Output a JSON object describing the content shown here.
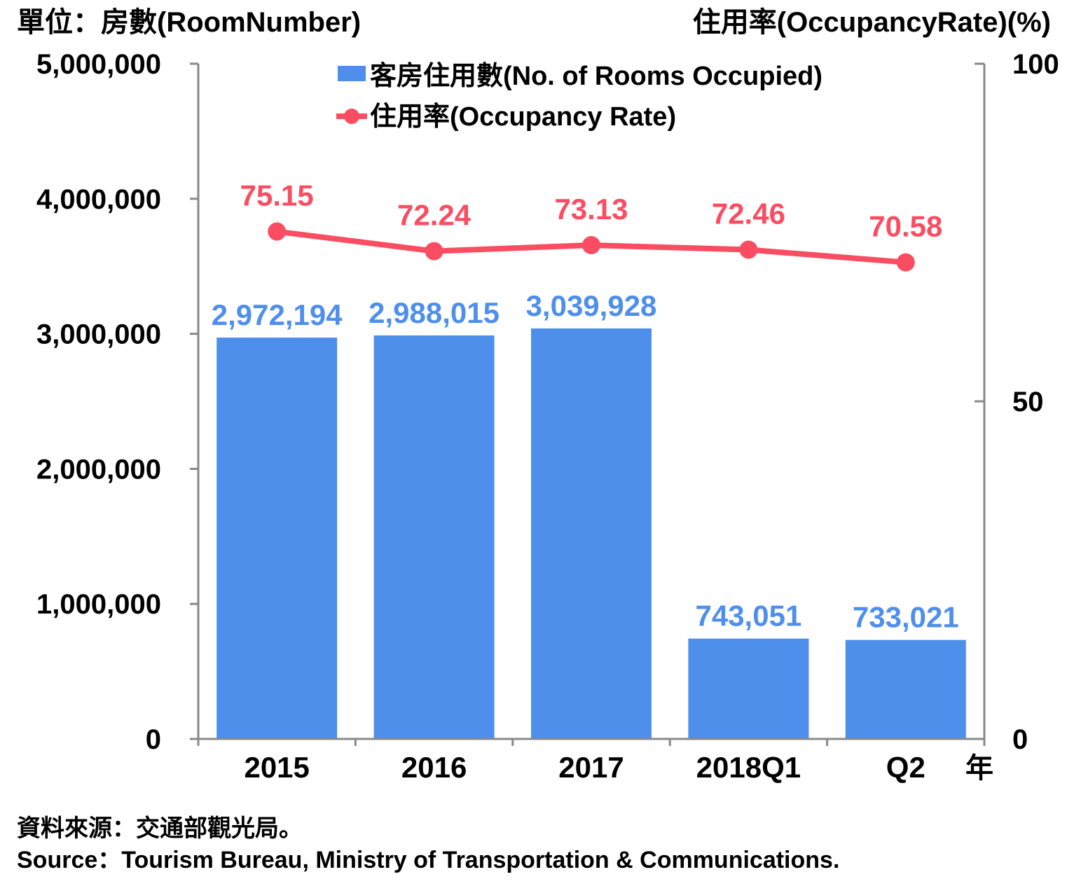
{
  "chart_data": {
    "type": "bar+line",
    "categories": [
      "2015",
      "2016",
      "2017",
      "2018Q1",
      "Q2"
    ],
    "x_unit": "年",
    "left_axis": {
      "label": "單位：房數(RoomNumber)",
      "range": [
        0,
        5000000
      ],
      "ticks": [
        "0",
        "1,000,000",
        "2,000,000",
        "3,000,000",
        "4,000,000",
        "5,000,000"
      ]
    },
    "right_axis": {
      "label": "住用率(OccupancyRate)(%)",
      "range": [
        0,
        100
      ],
      "ticks": [
        "0",
        "50",
        "100"
      ]
    },
    "series": [
      {
        "name": "客房住用數(No. of Rooms Occupied)",
        "type": "bar",
        "axis": "left",
        "color": "#4f8fec",
        "values": [
          2972194,
          2988015,
          3039928,
          743051,
          733021
        ],
        "labels": [
          "2,972,194",
          "2,988,015",
          "3,039,928",
          "743,051",
          "733,021"
        ]
      },
      {
        "name": "住用率(Occupancy Rate)",
        "type": "line",
        "axis": "right",
        "color": "#fa4d62",
        "values": [
          75.15,
          72.24,
          73.13,
          72.46,
          70.58
        ],
        "labels": [
          "75.15",
          "72.24",
          "73.13",
          "72.46",
          "70.58"
        ]
      }
    ],
    "legend_position": "top-center",
    "grid": false
  },
  "source": {
    "zh": "資料來源：交通部觀光局。",
    "en": "Source：Tourism Bureau, Ministry of Transportation & Communications."
  }
}
